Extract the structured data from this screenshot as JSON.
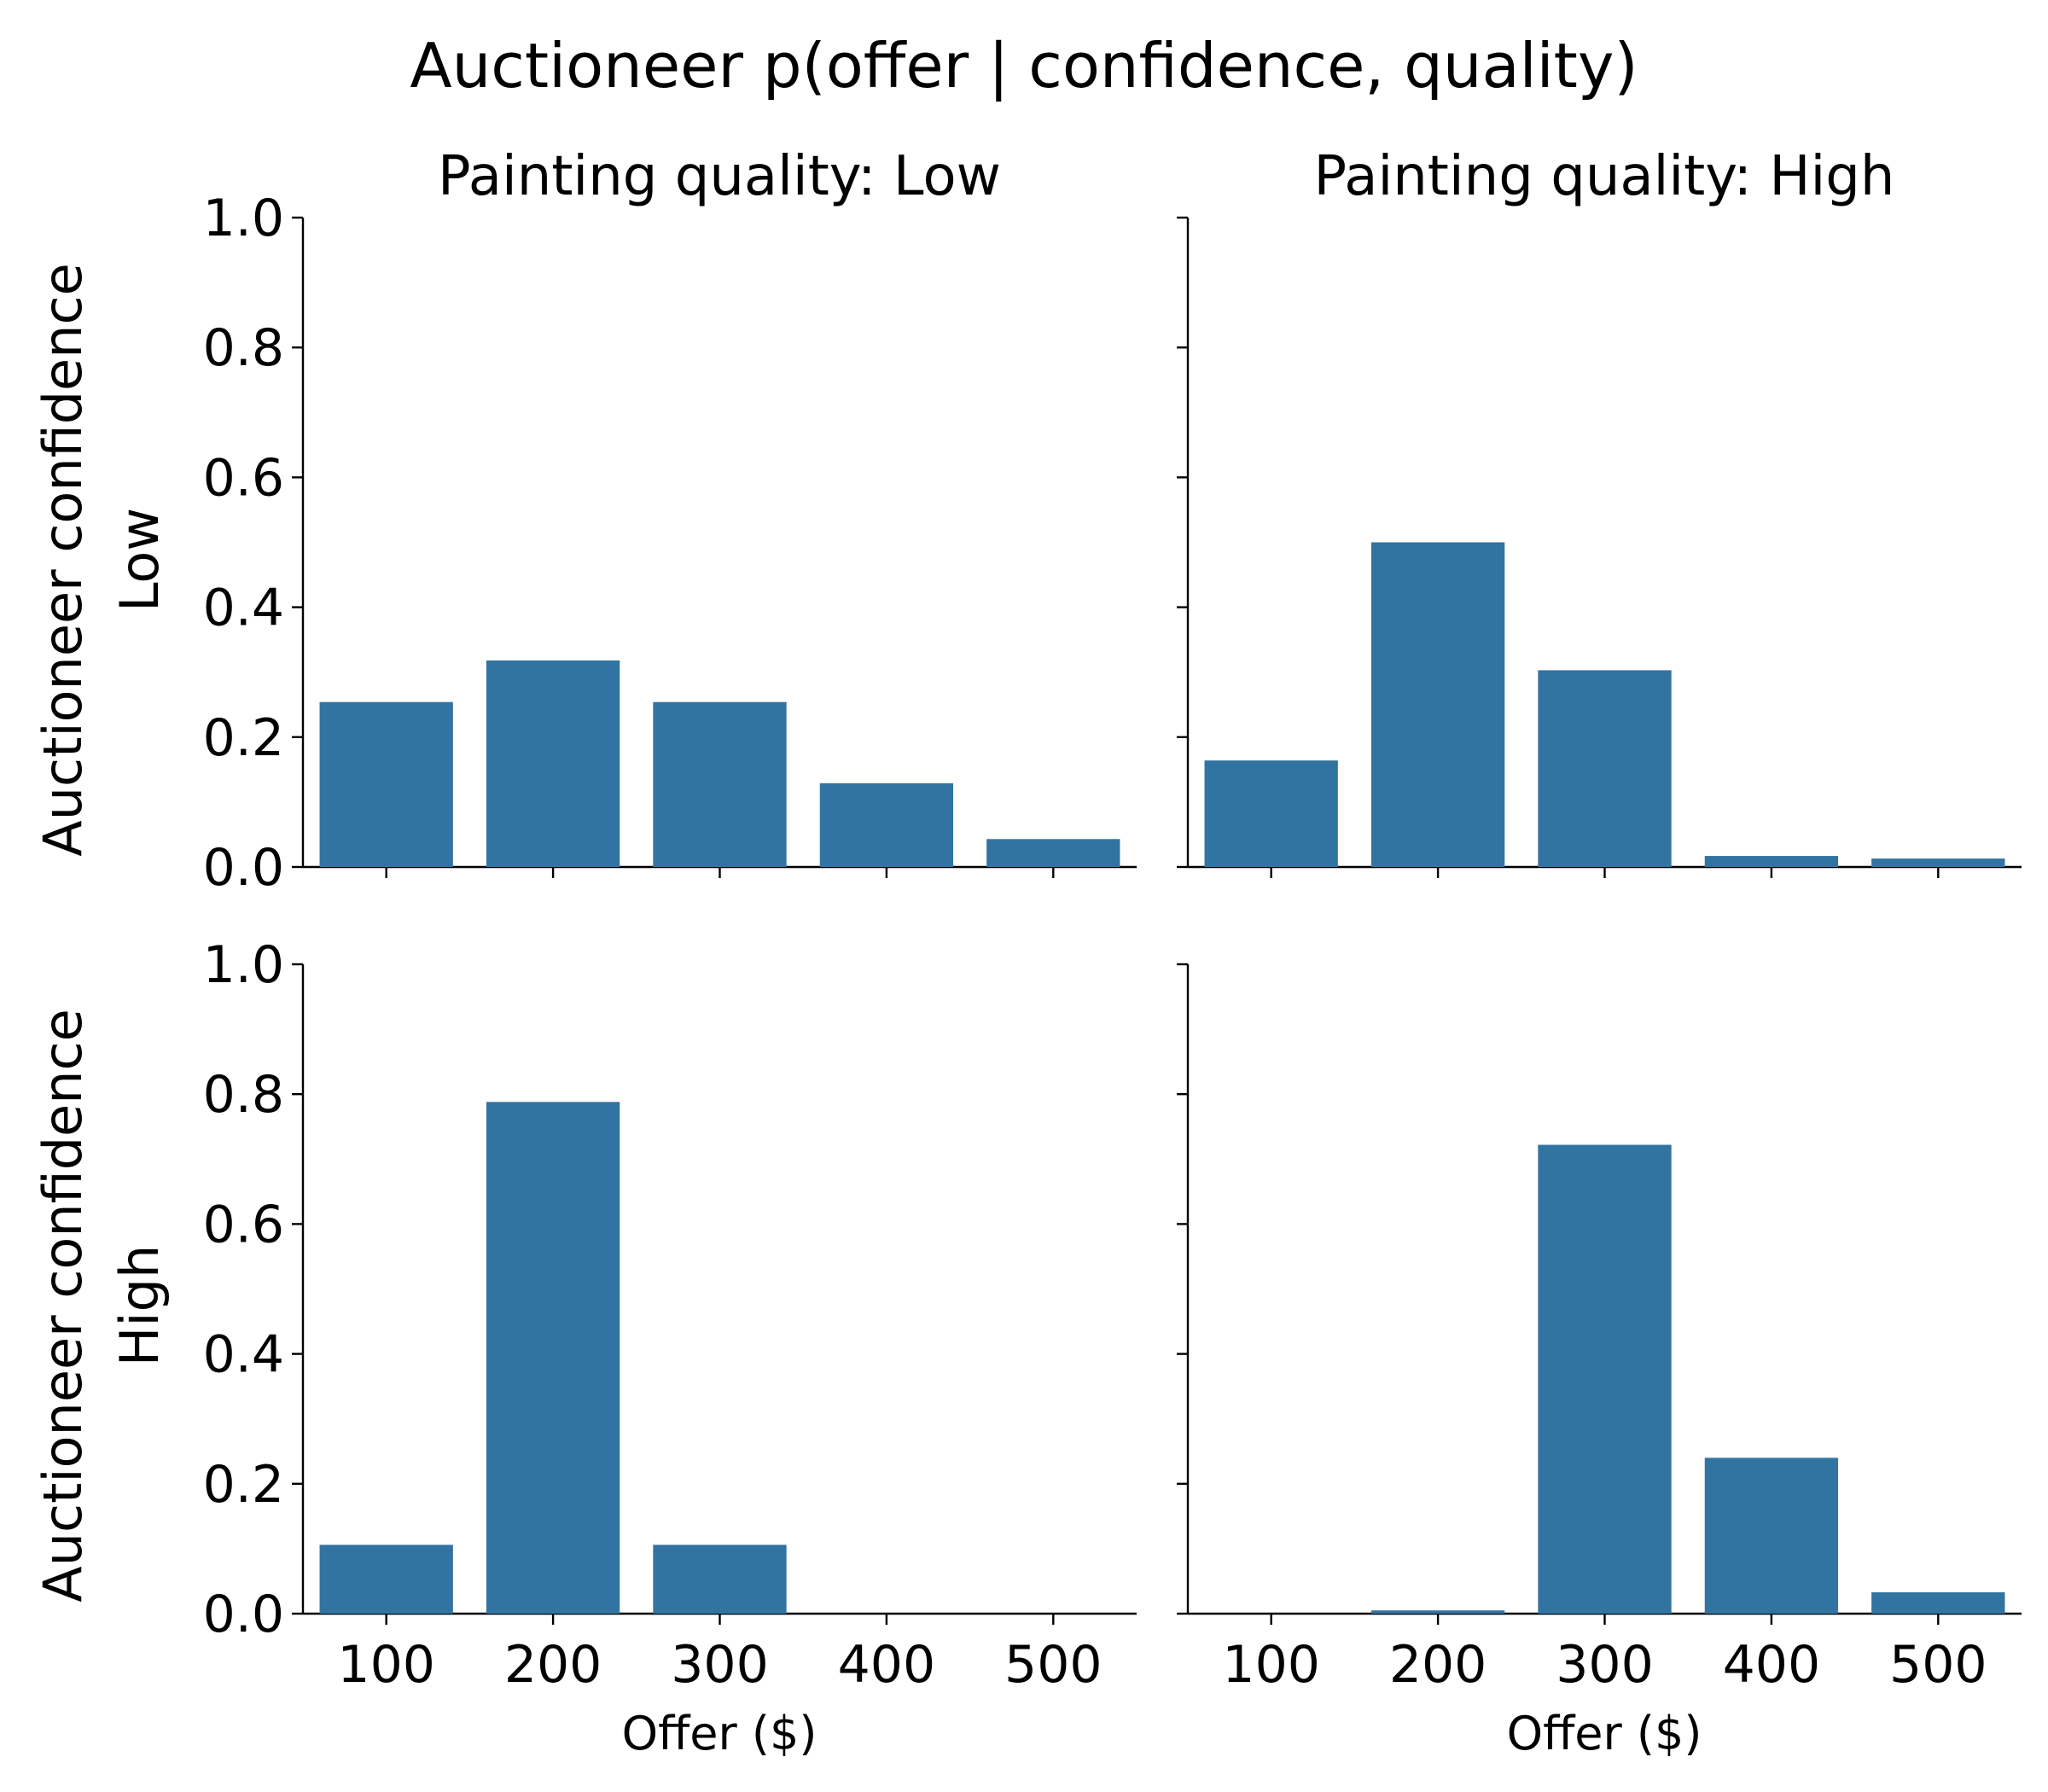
{
  "title": "Auctioneer p(offer | confidence, quality)",
  "col_titles": [
    "Painting quality: Low",
    "Painting quality: High"
  ],
  "row_labels": [
    [
      "Auctioneer confidence",
      "Low"
    ],
    [
      "Auctioneer confidence",
      "High"
    ]
  ],
  "xlabel": "Offer ($)",
  "colors": {
    "bar": "#3274a1",
    "axis": "#000000"
  },
  "chart_data": [
    {
      "type": "bar",
      "row": "Auctioneer confidence: Low",
      "col": "Painting quality: Low",
      "categories": [
        "100",
        "200",
        "300",
        "400",
        "500"
      ],
      "values": [
        0.254,
        0.318,
        0.254,
        0.129,
        0.043
      ],
      "xlabel": "",
      "ylabel": "Auctioneer confidence Low",
      "ylim": [
        0,
        1.0
      ],
      "yticks": [
        "0.0",
        "0.2",
        "0.4",
        "0.6",
        "0.8",
        "1.0"
      ],
      "grid": false
    },
    {
      "type": "bar",
      "row": "Auctioneer confidence: Low",
      "col": "Painting quality: High",
      "categories": [
        "100",
        "200",
        "300",
        "400",
        "500"
      ],
      "values": [
        0.164,
        0.5,
        0.303,
        0.017,
        0.013
      ],
      "xlabel": "",
      "ylabel": "",
      "ylim": [
        0,
        1.0
      ],
      "grid": false
    },
    {
      "type": "bar",
      "row": "Auctioneer confidence: High",
      "col": "Painting quality: Low",
      "categories": [
        "100",
        "200",
        "300",
        "400",
        "500"
      ],
      "values": [
        0.106,
        0.788,
        0.106,
        0.0,
        0.0
      ],
      "xlabel": "Offer ($)",
      "ylabel": "Auctioneer confidence High",
      "ylim": [
        0,
        1.0
      ],
      "yticks": [
        "0.0",
        "0.2",
        "0.4",
        "0.6",
        "0.8",
        "1.0"
      ],
      "grid": false
    },
    {
      "type": "bar",
      "row": "Auctioneer confidence: High",
      "col": "Painting quality: High",
      "categories": [
        "100",
        "200",
        "300",
        "400",
        "500"
      ],
      "values": [
        0.0,
        0.005,
        0.722,
        0.24,
        0.033
      ],
      "xlabel": "Offer ($)",
      "ylabel": "",
      "ylim": [
        0,
        1.0
      ],
      "grid": false
    }
  ]
}
